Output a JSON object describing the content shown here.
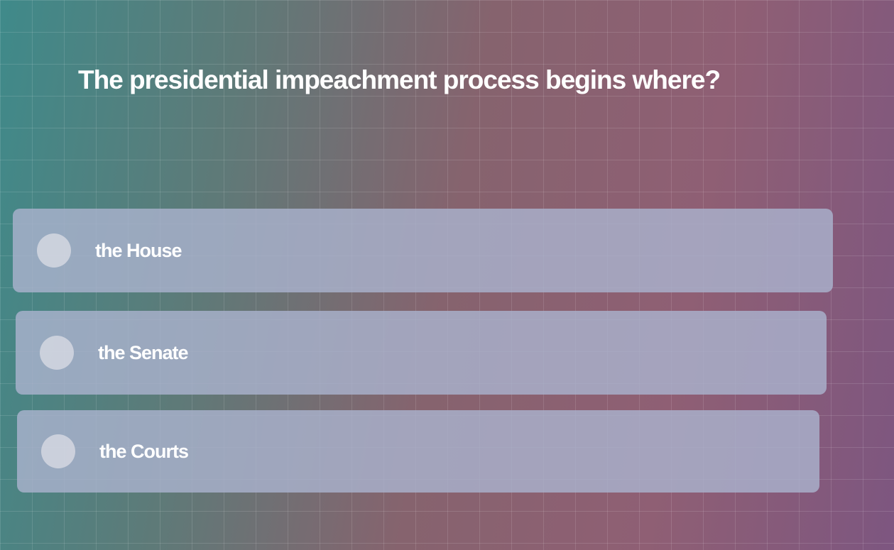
{
  "question": "The presidential impeachment process begins where?",
  "options": [
    {
      "label": "the House"
    },
    {
      "label": "the Senate"
    },
    {
      "label": "the Courts"
    }
  ]
}
